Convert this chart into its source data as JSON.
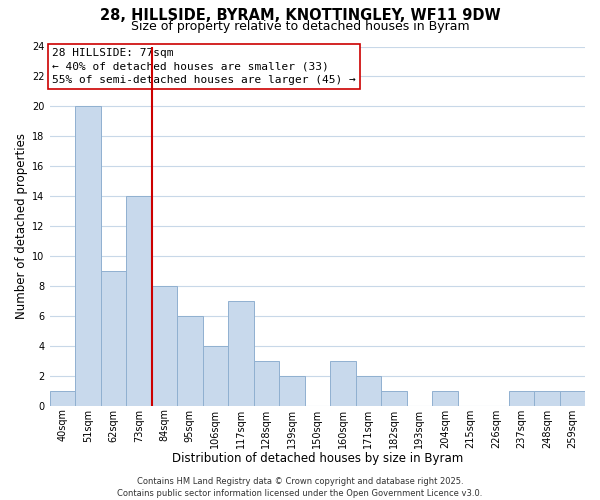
{
  "title": "28, HILLSIDE, BYRAM, KNOTTINGLEY, WF11 9DW",
  "subtitle": "Size of property relative to detached houses in Byram",
  "xlabel": "Distribution of detached houses by size in Byram",
  "ylabel": "Number of detached properties",
  "categories": [
    "40sqm",
    "51sqm",
    "62sqm",
    "73sqm",
    "84sqm",
    "95sqm",
    "106sqm",
    "117sqm",
    "128sqm",
    "139sqm",
    "150sqm",
    "160sqm",
    "171sqm",
    "182sqm",
    "193sqm",
    "204sqm",
    "215sqm",
    "226sqm",
    "237sqm",
    "248sqm",
    "259sqm"
  ],
  "values": [
    1,
    20,
    9,
    14,
    8,
    6,
    4,
    7,
    3,
    2,
    0,
    3,
    2,
    1,
    0,
    1,
    0,
    0,
    1,
    1,
    1
  ],
  "bar_color": "#c8d9ec",
  "bar_edge_color": "#90b0d0",
  "vline_color": "#cc0000",
  "vline_pos": 3.5,
  "ylim": [
    0,
    24
  ],
  "yticks": [
    0,
    2,
    4,
    6,
    8,
    10,
    12,
    14,
    16,
    18,
    20,
    22,
    24
  ],
  "annotation_title": "28 HILLSIDE: 77sqm",
  "annotation_line1": "← 40% of detached houses are smaller (33)",
  "annotation_line2": "55% of semi-detached houses are larger (45) →",
  "footer_line1": "Contains HM Land Registry data © Crown copyright and database right 2025.",
  "footer_line2": "Contains public sector information licensed under the Open Government Licence v3.0.",
  "background_color": "#ffffff",
  "grid_color": "#c8d8e8",
  "title_fontsize": 10.5,
  "subtitle_fontsize": 9,
  "axis_label_fontsize": 8.5,
  "tick_fontsize": 7,
  "annotation_fontsize": 8,
  "footer_fontsize": 6
}
